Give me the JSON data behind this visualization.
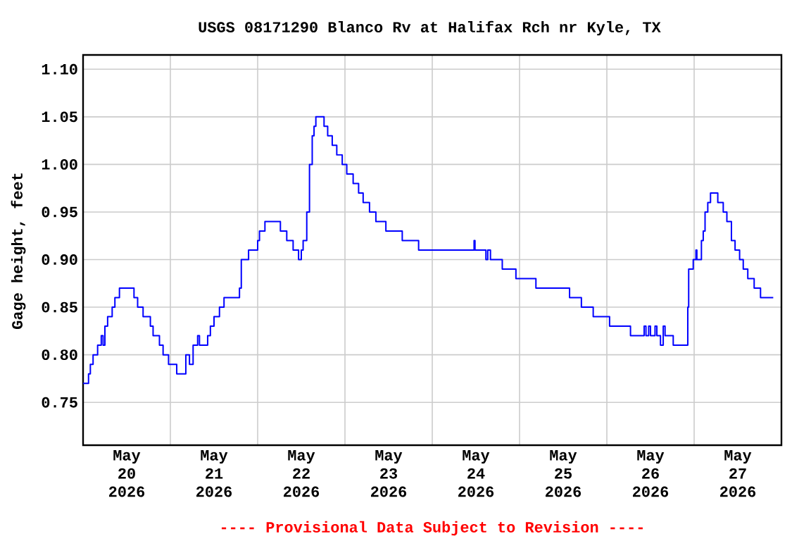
{
  "chart_data": {
    "type": "step",
    "title": "USGS 08171290 Blanco Rv at Halifax Rch nr Kyle, TX",
    "ylabel": "Gage height, feet",
    "annotations": [
      "---- Provisional Data Subject to Revision ----"
    ],
    "x": [
      "2026-05-20T00:00",
      "2026-05-20T01:30",
      "2026-05-20T02:00",
      "2026-05-20T02:45",
      "2026-05-20T04:00",
      "2026-05-20T05:00",
      "2026-05-20T05:30",
      "2026-05-20T06:00",
      "2026-05-20T06:45",
      "2026-05-20T08:00",
      "2026-05-20T08:45",
      "2026-05-20T10:00",
      "2026-05-20T14:00",
      "2026-05-20T15:00",
      "2026-05-20T16:30",
      "2026-05-20T18:30",
      "2026-05-20T19:15",
      "2026-05-20T21:00",
      "2026-05-20T22:00",
      "2026-05-20T23:30",
      "2026-05-21T01:45",
      "2026-05-21T04:15",
      "2026-05-21T05:15",
      "2026-05-21T06:15",
      "2026-05-21T07:30",
      "2026-05-21T08:00",
      "2026-05-21T10:15",
      "2026-05-21T11:00",
      "2026-05-21T12:00",
      "2026-05-21T13:30",
      "2026-05-21T14:45",
      "2026-05-21T19:00",
      "2026-05-21T19:30",
      "2026-05-21T21:30",
      "2026-05-22T00:00",
      "2026-05-22T00:30",
      "2026-05-22T02:00",
      "2026-05-22T06:15",
      "2026-05-22T08:00",
      "2026-05-22T09:45",
      "2026-05-22T11:15",
      "2026-05-22T12:00",
      "2026-05-22T12:30",
      "2026-05-22T13:30",
      "2026-05-22T14:15",
      "2026-05-22T15:00",
      "2026-05-22T15:30",
      "2026-05-22T16:00",
      "2026-05-22T18:15",
      "2026-05-22T19:15",
      "2026-05-22T20:30",
      "2026-05-22T21:45",
      "2026-05-22T23:15",
      "2026-05-23T00:30",
      "2026-05-23T02:15",
      "2026-05-23T03:45",
      "2026-05-23T05:00",
      "2026-05-23T06:45",
      "2026-05-23T08:30",
      "2026-05-23T11:15",
      "2026-05-23T15:45",
      "2026-05-23T20:15",
      "2026-05-24T11:30",
      "2026-05-24T11:45",
      "2026-05-24T14:45",
      "2026-05-24T15:15",
      "2026-05-24T16:00",
      "2026-05-24T19:15",
      "2026-05-24T23:00",
      "2026-05-25T04:30",
      "2026-05-25T13:45",
      "2026-05-25T17:00",
      "2026-05-25T20:15",
      "2026-05-26T00:45",
      "2026-05-26T06:30",
      "2026-05-26T10:15",
      "2026-05-26T10:45",
      "2026-05-26T11:30",
      "2026-05-26T12:00",
      "2026-05-26T13:15",
      "2026-05-26T13:45",
      "2026-05-26T14:45",
      "2026-05-26T15:30",
      "2026-05-26T16:00",
      "2026-05-26T18:15",
      "2026-05-26T22:15",
      "2026-05-26T22:30",
      "2026-05-26T23:45",
      "2026-05-27T00:30",
      "2026-05-27T00:45",
      "2026-05-27T02:00",
      "2026-05-27T02:30",
      "2026-05-27T03:00",
      "2026-05-27T03:45",
      "2026-05-27T04:30",
      "2026-05-27T06:30",
      "2026-05-27T08:00",
      "2026-05-27T09:00",
      "2026-05-27T10:15",
      "2026-05-27T11:15",
      "2026-05-27T12:30",
      "2026-05-27T13:30",
      "2026-05-27T14:45",
      "2026-05-27T16:30",
      "2026-05-27T18:15",
      "2026-05-27T21:45"
    ],
    "series": [
      {
        "color": "#0000ff",
        "values": [
          0.77,
          0.78,
          0.79,
          0.8,
          0.81,
          0.82,
          0.81,
          0.83,
          0.84,
          0.85,
          0.86,
          0.87,
          0.86,
          0.85,
          0.84,
          0.83,
          0.82,
          0.81,
          0.8,
          0.79,
          0.78,
          0.8,
          0.79,
          0.81,
          0.82,
          0.81,
          0.82,
          0.83,
          0.84,
          0.85,
          0.86,
          0.87,
          0.9,
          0.91,
          0.92,
          0.93,
          0.94,
          0.93,
          0.92,
          0.91,
          0.9,
          0.91,
          0.92,
          0.95,
          1.0,
          1.03,
          1.04,
          1.05,
          1.04,
          1.03,
          1.02,
          1.01,
          1.0,
          0.99,
          0.98,
          0.97,
          0.96,
          0.95,
          0.94,
          0.93,
          0.92,
          0.91,
          0.92,
          0.91,
          0.9,
          0.91,
          0.9,
          0.89,
          0.88,
          0.87,
          0.86,
          0.85,
          0.84,
          0.83,
          0.82,
          0.83,
          0.82,
          0.83,
          0.82,
          0.83,
          0.82,
          0.81,
          0.83,
          0.82,
          0.81,
          0.85,
          0.89,
          0.9,
          0.91,
          0.9,
          0.92,
          0.93,
          0.95,
          0.96,
          0.97,
          0.96,
          0.95,
          0.94,
          0.92,
          0.91,
          0.9,
          0.89,
          0.88,
          0.87,
          0.86,
          0.86
        ]
      }
    ],
    "xlim": [
      "2026-05-20T00:00",
      "2026-05-28T00:00"
    ],
    "xticks": [
      {
        "value": "2026-05-20T12:00",
        "label": "May 20 2026"
      },
      {
        "value": "2026-05-21T00:00",
        "label": null
      },
      {
        "value": "2026-05-21T12:00",
        "label": "May 21 2026"
      },
      {
        "value": "2026-05-22T00:00",
        "label": null
      },
      {
        "value": "2026-05-22T12:00",
        "label": "May 22 2026"
      },
      {
        "value": "2026-05-23T00:00",
        "label": null
      },
      {
        "value": "2026-05-23T12:00",
        "label": "May 23 2026"
      },
      {
        "value": "2026-05-24T00:00",
        "label": null
      },
      {
        "value": "2026-05-24T12:00",
        "label": "May 24 2026"
      },
      {
        "value": "2026-05-25T00:00",
        "label": null
      },
      {
        "value": "2026-05-25T12:00",
        "label": "May 25 2026"
      },
      {
        "value": "2026-05-26T00:00",
        "label": null
      },
      {
        "value": "2026-05-26T12:00",
        "label": "May 26 2026"
      },
      {
        "value": "2026-05-27T00:00",
        "label": null
      },
      {
        "value": "2026-05-27T12:00",
        "label": "May 27 2026"
      }
    ],
    "ylim": [
      0.705,
      1.115
    ],
    "yticks": [
      {
        "value": 0.75,
        "label": "0.75"
      },
      {
        "value": 0.8,
        "label": "0.80"
      },
      {
        "value": 0.85,
        "label": "0.85"
      },
      {
        "value": 0.9,
        "label": "0.90"
      },
      {
        "value": 0.95,
        "label": "0.95"
      },
      {
        "value": 1.0,
        "label": "1.00"
      },
      {
        "value": 1.05,
        "label": "1.05"
      },
      {
        "value": 1.1,
        "label": "1.10"
      }
    ],
    "grid": true
  }
}
